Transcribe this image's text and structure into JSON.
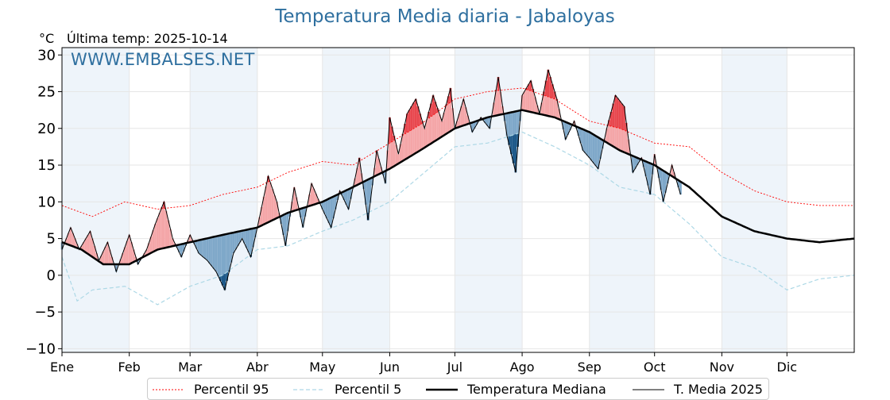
{
  "header": {
    "title": "Temperatura Media diaria - Jabaloyas",
    "unit": "°C",
    "last_temp_label": "Última temp:",
    "last_temp_date": "2025-10-14",
    "watermark": "WWW.EMBALSES.NET"
  },
  "colors": {
    "p95": "#ff0000",
    "p5": "#add8e6",
    "median": "#000000",
    "current": "#000000",
    "above_median_fill": "#f4a6a8",
    "above_p95_fill": "#e8474e",
    "below_median_fill": "#7fa8c9",
    "below_p5_fill": "#1f5a8a",
    "month_band": "#eef4fa",
    "title": "#2e6f9f"
  },
  "legend": [
    {
      "key": "p95",
      "label": "Percentil 95"
    },
    {
      "key": "p5",
      "label": "Percentil 5"
    },
    {
      "key": "median",
      "label": "Temperatura Mediana"
    },
    {
      "key": "current",
      "label": "T. Media 2025"
    }
  ],
  "chart_data": {
    "type": "line",
    "title": "Temperatura Media diaria - Jabaloyas",
    "ylabel": "°C",
    "ylim": [
      -10.5,
      31
    ],
    "xlim": [
      1,
      366
    ],
    "grid": true,
    "legend_position": "bottom",
    "month_labels": [
      "Ene",
      "Feb",
      "Mar",
      "Abr",
      "May",
      "Jun",
      "Jul",
      "Ago",
      "Sep",
      "Oct",
      "Nov",
      "Dic"
    ],
    "month_start_days": [
      1,
      32,
      60,
      91,
      121,
      152,
      182,
      213,
      244,
      274,
      305,
      335
    ],
    "y_ticks": [
      -10,
      -5,
      0,
      5,
      10,
      15,
      20,
      25,
      30
    ],
    "series": [
      {
        "key": "p95",
        "name": "Percentil 95",
        "style": "dotted",
        "x": [
          1,
          15,
          30,
          45,
          60,
          75,
          91,
          105,
          121,
          135,
          152,
          166,
          182,
          197,
          213,
          228,
          244,
          258,
          274,
          290,
          305,
          320,
          335,
          350,
          366
        ],
        "y": [
          9.5,
          8,
          10,
          9,
          9.5,
          11,
          12,
          14,
          15.5,
          15,
          18,
          20.5,
          24,
          25,
          25.5,
          24,
          21,
          20,
          18,
          17.5,
          14,
          11.5,
          10,
          9.5,
          9.5
        ]
      },
      {
        "key": "p5",
        "name": "Percentil 5",
        "style": "dashed",
        "x": [
          1,
          8,
          15,
          30,
          45,
          60,
          75,
          91,
          105,
          121,
          135,
          152,
          166,
          182,
          197,
          213,
          228,
          244,
          258,
          274,
          290,
          305,
          320,
          335,
          350,
          366
        ],
        "y": [
          2.5,
          -3.5,
          -2,
          -1.5,
          -4,
          -1.5,
          0,
          3.5,
          4,
          6,
          7.5,
          10,
          13.5,
          17.5,
          18,
          19.5,
          17.5,
          15,
          12,
          11,
          7,
          2.5,
          1,
          -2,
          -0.5,
          0
        ]
      },
      {
        "key": "median",
        "name": "Temperatura Mediana",
        "style": "solid-bold",
        "x": [
          1,
          10,
          20,
          32,
          45,
          60,
          75,
          91,
          105,
          121,
          135,
          152,
          166,
          182,
          197,
          213,
          228,
          244,
          258,
          274,
          290,
          305,
          320,
          335,
          350,
          366
        ],
        "y": [
          4.5,
          3.5,
          1.5,
          1.5,
          3.5,
          4.5,
          5.5,
          6.5,
          8.5,
          10,
          12,
          14.5,
          17,
          20,
          21.5,
          22.5,
          21.5,
          19.5,
          17,
          15,
          12,
          8,
          6,
          5,
          4.5,
          5
        ]
      },
      {
        "key": "current",
        "name": "T. Media 2025",
        "style": "solid-thin",
        "x": [
          1,
          5,
          9,
          14,
          18,
          22,
          26,
          32,
          36,
          40,
          44,
          48,
          52,
          56,
          60,
          64,
          68,
          72,
          76,
          80,
          84,
          88,
          91,
          96,
          100,
          104,
          108,
          112,
          116,
          121,
          125,
          129,
          133,
          138,
          142,
          146,
          150,
          152,
          156,
          160,
          164,
          168,
          172,
          176,
          180,
          182,
          186,
          190,
          194,
          198,
          202,
          206,
          210,
          213,
          217,
          221,
          225,
          229,
          233,
          237,
          241,
          244,
          248,
          252,
          256,
          260,
          264,
          268,
          272,
          274,
          278,
          282,
          286
        ],
        "y": [
          3.5,
          6.5,
          3.5,
          6,
          2,
          4.5,
          0.5,
          5.5,
          1.5,
          3.5,
          7,
          10,
          5,
          2.5,
          5.5,
          3,
          2,
          0.5,
          -2,
          3,
          5,
          2.5,
          6.5,
          13.5,
          10,
          4,
          12,
          6.5,
          12.5,
          9,
          6.5,
          11.5,
          9,
          16,
          7.5,
          17,
          12.5,
          21.5,
          16.5,
          22,
          24,
          20,
          24.5,
          21,
          25.5,
          20,
          24,
          19.5,
          21.5,
          20,
          27,
          19,
          14,
          24.5,
          26.5,
          22,
          28,
          24,
          18.5,
          21,
          17,
          16,
          14.5,
          20,
          24.5,
          23,
          14,
          16,
          11,
          16.5,
          10,
          15,
          11
        ]
      }
    ]
  }
}
